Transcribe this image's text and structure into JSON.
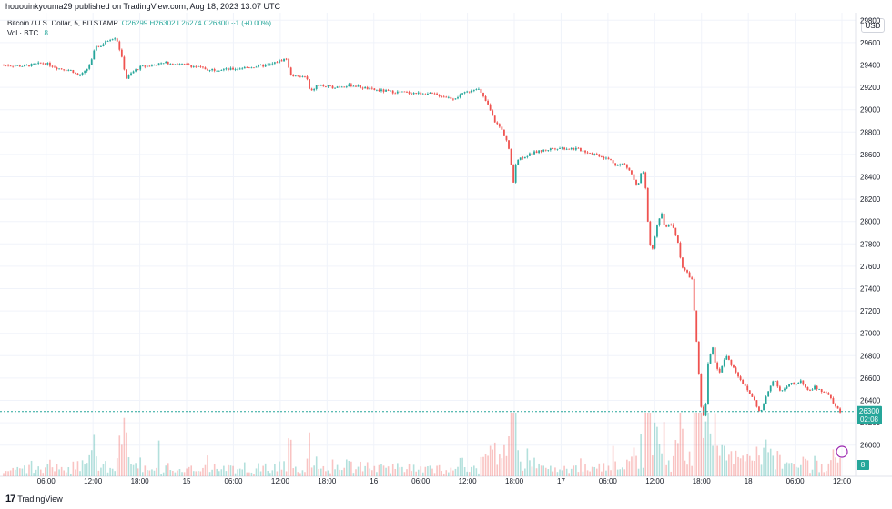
{
  "header": {
    "publish_text": "hououinkyouma29 published on TradingView.com, Aug 18, 2023 13:07 UTC"
  },
  "legend": {
    "symbol": "Bitcoin / U.S. Dollar, 5, BITSTAMP",
    "open_label": "O",
    "open": "26299",
    "high_label": "H",
    "high": "26302",
    "low_label": "L",
    "low": "26274",
    "close_label": "C",
    "close": "26300",
    "change": "+1 (+0.00%)",
    "volume_label": "Vol · BTC",
    "volume": "8"
  },
  "price_scale": {
    "currency_button": "USD",
    "current_price": "26300",
    "countdown": "02:08",
    "volume_badge": "8"
  },
  "footer": {
    "brand": "TradingView",
    "logo_glyph": "17"
  },
  "colors": {
    "up": "#26a69a",
    "down": "#ef5350",
    "grid": "#f0f3fa",
    "price_line": "#26a69a"
  },
  "chart_data": {
    "type": "candlestick",
    "ylim": [
      25900,
      29900
    ],
    "y_ticks": [
      26000,
      26200,
      26400,
      26600,
      26800,
      27000,
      27200,
      27400,
      27600,
      27800,
      28000,
      28200,
      28400,
      28600,
      28800,
      29000,
      29200,
      29400,
      29600,
      29800
    ],
    "x_ticks": [
      "06:00",
      "12:00",
      "18:00",
      "15",
      "06:00",
      "12:00",
      "18:00",
      "16",
      "06:00",
      "12:00",
      "18:00",
      "17",
      "06:00",
      "12:00",
      "18:00",
      "18",
      "06:00",
      "12:00"
    ],
    "price_path_x_hours": [
      0,
      3,
      6,
      8,
      10,
      11,
      12,
      13,
      13.5,
      14,
      15.5,
      16.5,
      17.2,
      18,
      19,
      20,
      22,
      24,
      27,
      30,
      33,
      36,
      39,
      41.5,
      42,
      43,
      44,
      44.5,
      45,
      46,
      48,
      51,
      54,
      57,
      60,
      63,
      66,
      69.5,
      70,
      71,
      72,
      73,
      74,
      74.8,
      75,
      75.5,
      78,
      81,
      84,
      87,
      89,
      90,
      91,
      92,
      93,
      93.5,
      94,
      94.5,
      95,
      96,
      96.5,
      97,
      98,
      99,
      99.5,
      100,
      101,
      102.5,
      103,
      103.3,
      103.6,
      104,
      104.5,
      105,
      106,
      107,
      108,
      109,
      110,
      111,
      112,
      113,
      114,
      114.5,
      115,
      115.5,
      116,
      117,
      118,
      119,
      120,
      121,
      122,
      122.7,
      123
    ],
    "price_path_values": [
      29400,
      29390,
      29420,
      29370,
      29350,
      29300,
      29340,
      29450,
      29580,
      29560,
      29630,
      29650,
      29500,
      29280,
      29340,
      29380,
      29400,
      29420,
      29400,
      29360,
      29360,
      29380,
      29400,
      29460,
      29320,
      29290,
      29300,
      29280,
      29150,
      29220,
      29200,
      29220,
      29180,
      29160,
      29150,
      29140,
      29100,
      29200,
      29150,
      29050,
      28900,
      28830,
      28700,
      28350,
      28500,
      28560,
      28620,
      28660,
      28650,
      28600,
      28550,
      28500,
      28520,
      28440,
      28300,
      28420,
      28450,
      28000,
      27700,
      28000,
      28080,
      27950,
      27980,
      27800,
      27600,
      27560,
      27480,
      26200,
      26350,
      26700,
      26800,
      26900,
      26700,
      26650,
      26800,
      26700,
      26600,
      26500,
      26420,
      26280,
      26450,
      26600,
      26480,
      26500,
      26520,
      26550,
      26540,
      26580,
      26480,
      26520,
      26480,
      26450,
      26350,
      26300,
      26300
    ],
    "x_range_hours": [
      0,
      125
    ]
  }
}
